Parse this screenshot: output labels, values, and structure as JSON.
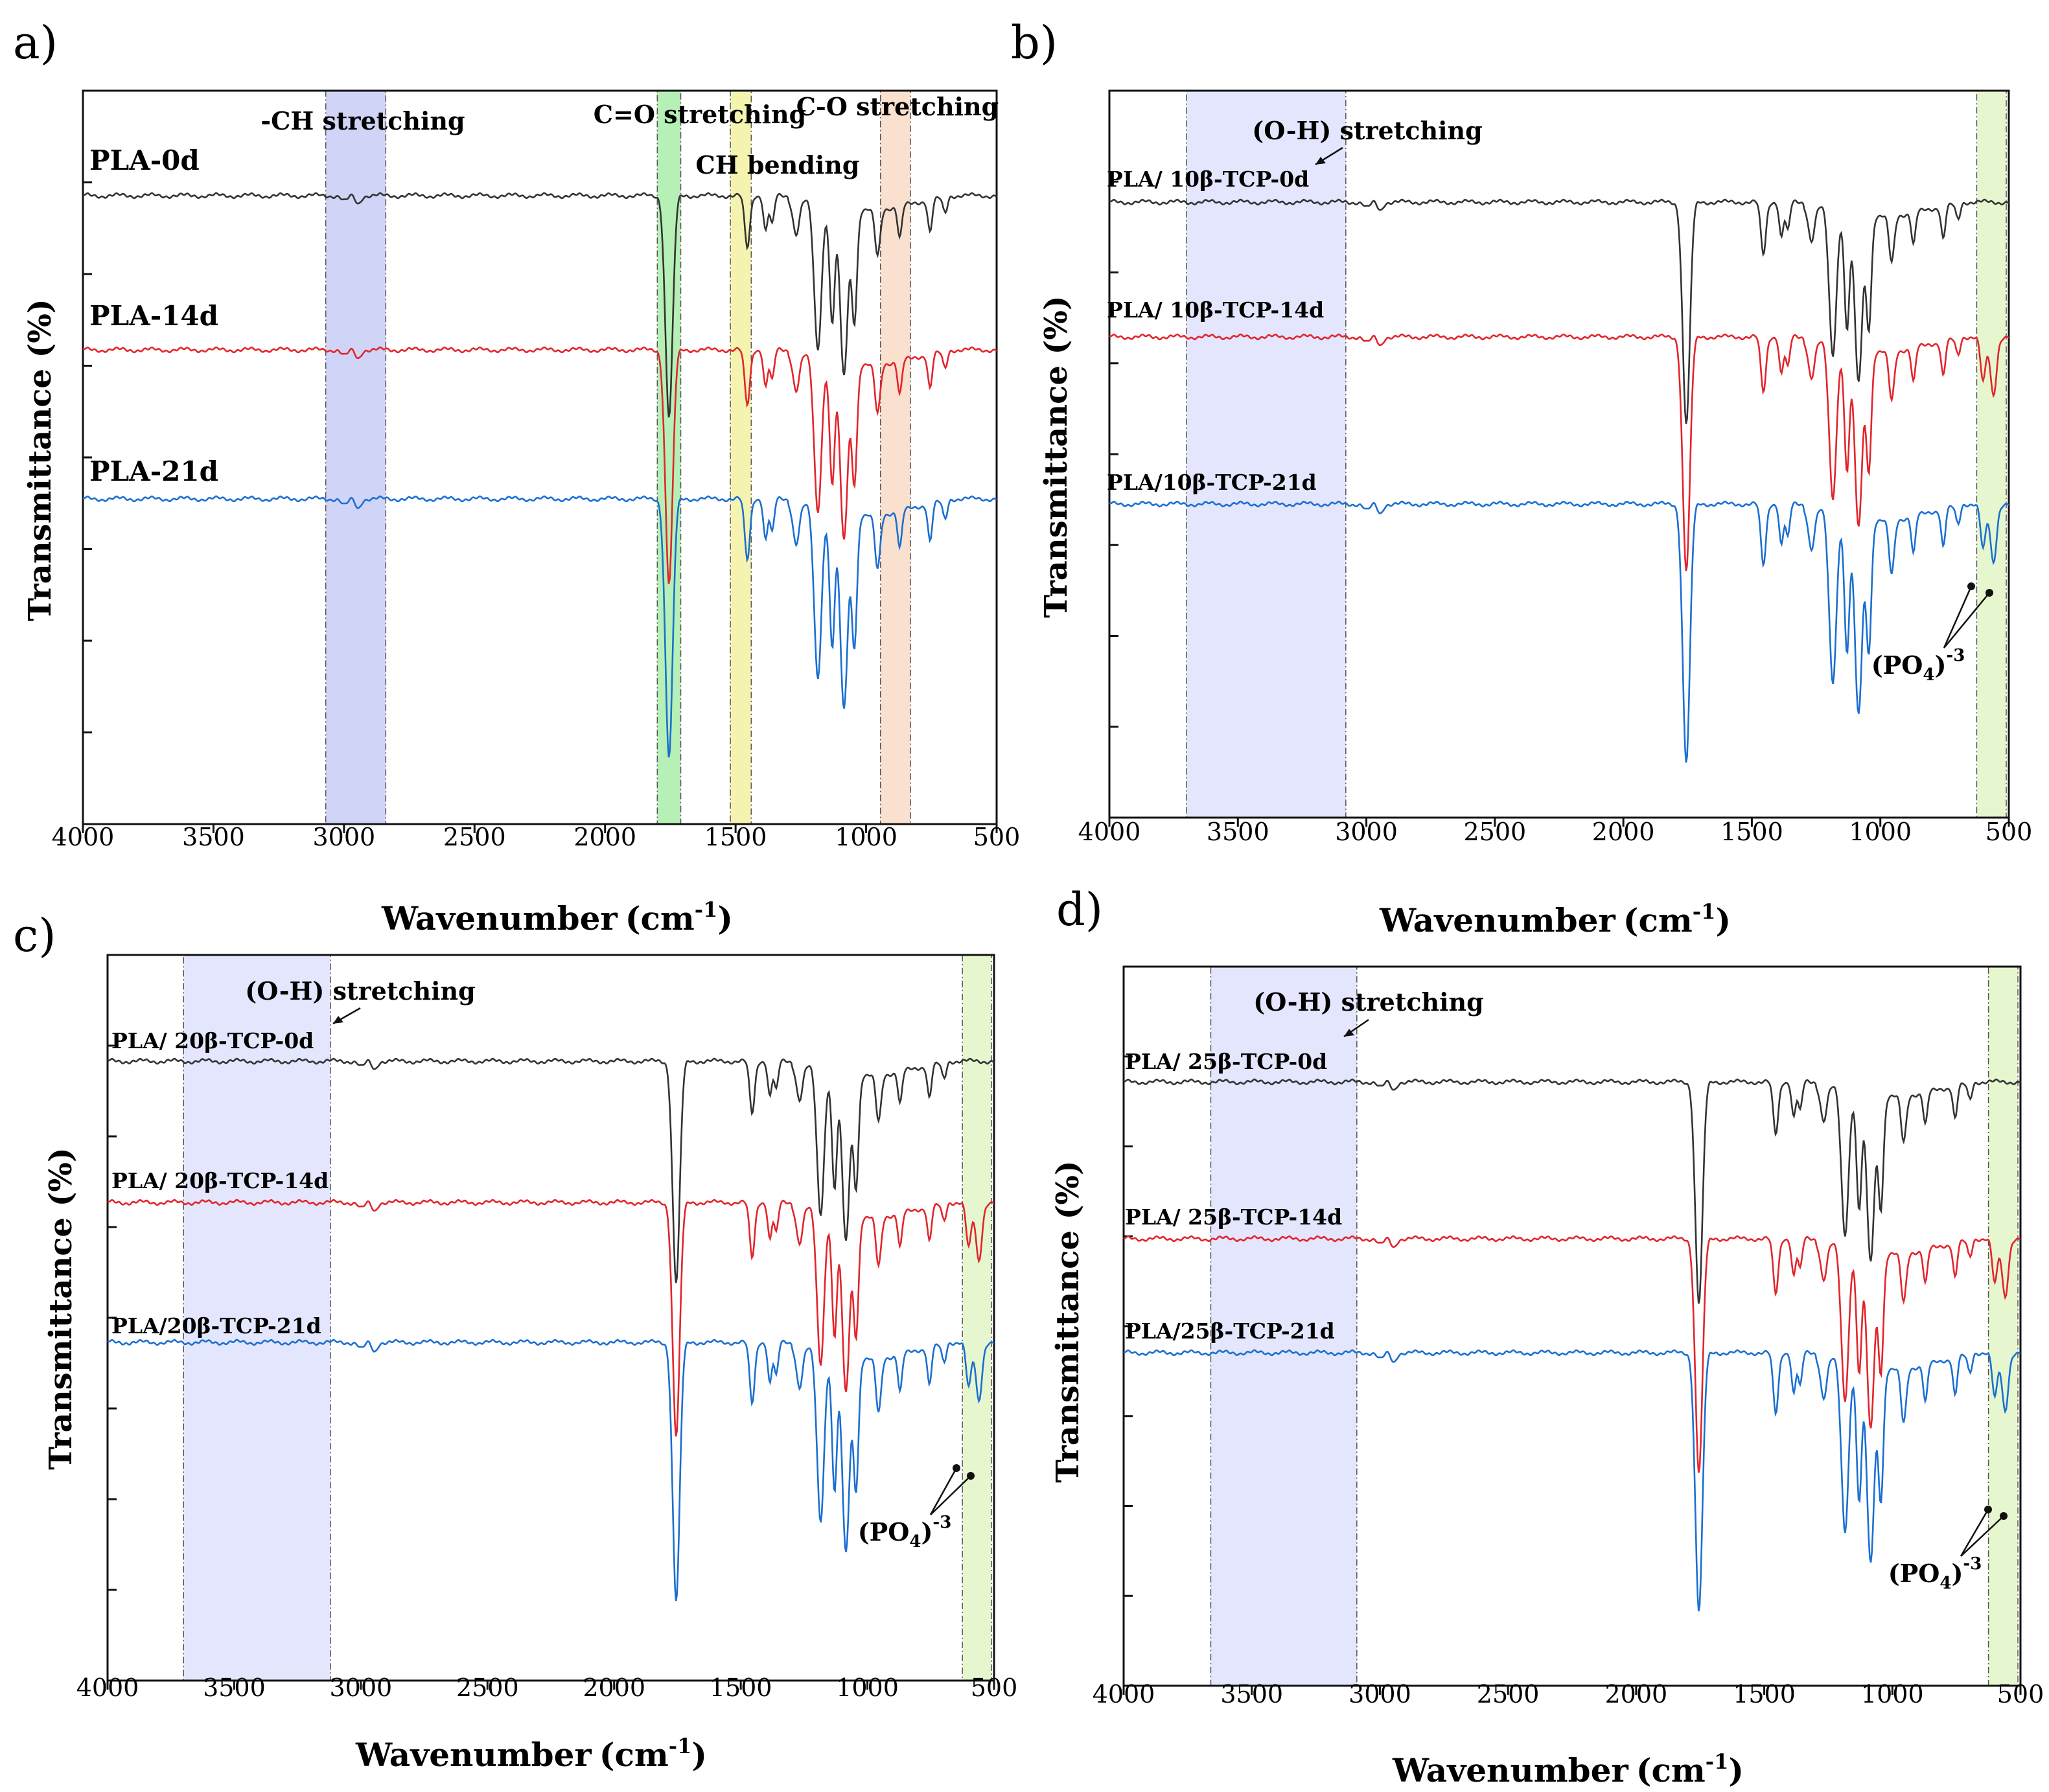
{
  "figure": {
    "colors": {
      "black": "#333333",
      "red": "#e2252c",
      "blue": "#1b6fd1",
      "axis": "#111111"
    }
  },
  "chart_data": [
    {
      "type": "line",
      "panel_label": "a)",
      "xlabel": "Wavenumber",
      "xlabel_unit": "(cm",
      "xlabel_sup": "-1",
      "xlabel_close": ")",
      "ylabel": "Transmittance (%)",
      "xlim": [
        4000,
        500
      ],
      "xticks": [
        4000,
        3500,
        3000,
        2500,
        2000,
        1500,
        1000,
        500
      ],
      "series": [
        {
          "name": "PLA-0d",
          "color": "#333333",
          "offset": 0.0
        },
        {
          "name": "PLA-14d",
          "color": "#e2252c",
          "offset": 1.0
        },
        {
          "name": "PLA-21d",
          "color": "#1b6fd1",
          "offset": 2.0
        }
      ],
      "bands": [
        {
          "from": 3070,
          "to": 2840,
          "color": "#b7bff5",
          "label": "-CH stretching"
        },
        {
          "from": 1800,
          "to": 1710,
          "color": "#8fe88f",
          "label": "C=O stretching"
        },
        {
          "from": 1520,
          "to": 1440,
          "color": "#f0ec86",
          "label": "CH bending"
        },
        {
          "from": 945,
          "to": 830,
          "color": "#f7cfb4",
          "label": "C-O stretching"
        }
      ]
    },
    {
      "type": "line",
      "panel_label": "b)",
      "xlabel": "Wavenumber",
      "xlabel_unit": "(cm",
      "xlabel_sup": "-1",
      "xlabel_close": ")",
      "ylabel": "Transmittance (%)",
      "xlim": [
        4000,
        500
      ],
      "xticks": [
        4000,
        3500,
        3000,
        2500,
        2000,
        1500,
        1000,
        500
      ],
      "series": [
        {
          "name": "PLA/ 10β-TCP-0d",
          "color": "#333333",
          "offset": 0.0
        },
        {
          "name": "PLA/ 10β-TCP-14d",
          "color": "#e2252c",
          "offset": 1.0
        },
        {
          "name": "PLA/10β-TCP-21d",
          "color": "#1b6fd1",
          "offset": 2.0
        }
      ],
      "bands": [
        {
          "from": 3700,
          "to": 3080,
          "color": "#d4d9fb",
          "label": "(O-H) stretching"
        },
        {
          "from": 625,
          "to": 510,
          "color": "#d9f2b6",
          "label": "(PO4)-3"
        }
      ],
      "annotation": {
        "main": "(PO",
        "sub": "4",
        "sup": "-3",
        "close": ")"
      }
    },
    {
      "type": "line",
      "panel_label": "c)",
      "xlabel": "Wavenumber",
      "xlabel_unit": "(cm",
      "xlabel_sup": "-1",
      "xlabel_close": ")",
      "ylabel": "Transmittance (%)",
      "xlim": [
        4000,
        500
      ],
      "xticks": [
        4000,
        3500,
        3000,
        2500,
        2000,
        1500,
        1000,
        500
      ],
      "series": [
        {
          "name": "PLA/ 20β-TCP-0d",
          "color": "#333333",
          "offset": 0.0
        },
        {
          "name": "PLA/ 20β-TCP-14d",
          "color": "#e2252c",
          "offset": 1.0
        },
        {
          "name": "PLA/20β-TCP-21d",
          "color": "#1b6fd1",
          "offset": 2.0
        }
      ],
      "bands": [
        {
          "from": 3700,
          "to": 3120,
          "color": "#d4d9fb",
          "label": "(O-H) stretching"
        },
        {
          "from": 625,
          "to": 510,
          "color": "#d9f2b6",
          "label": "(PO4)-3"
        }
      ],
      "annotation": {
        "main": "(PO",
        "sub": "4",
        "sup": "-3",
        "close": ")"
      }
    },
    {
      "type": "line",
      "panel_label": "d)",
      "xlabel": "Wavenumber",
      "xlabel_unit": "(cm",
      "xlabel_sup": "-1",
      "xlabel_close": ")",
      "ylabel": "Transmittance (%)",
      "xlim": [
        4000,
        500
      ],
      "xticks": [
        4000,
        3500,
        3000,
        2500,
        2000,
        1500,
        1000,
        500
      ],
      "series": [
        {
          "name": "PLA/ 25β-TCP-0d",
          "color": "#333333",
          "offset": 0.0
        },
        {
          "name": "PLA/ 25β-TCP-14d",
          "color": "#e2252c",
          "offset": 1.0
        },
        {
          "name": "PLA/25β-TCP-21d",
          "color": "#1b6fd1",
          "offset": 2.0
        }
      ],
      "bands": [
        {
          "from": 3660,
          "to": 3090,
          "color": "#d4d9fb",
          "label": "(O-H) stretching"
        },
        {
          "from": 625,
          "to": 510,
          "color": "#d9f2b6",
          "label": "(PO4)-3"
        }
      ],
      "annotation": {
        "main": "(PO",
        "sub": "4",
        "sup": "-3",
        "close": ")"
      }
    }
  ]
}
